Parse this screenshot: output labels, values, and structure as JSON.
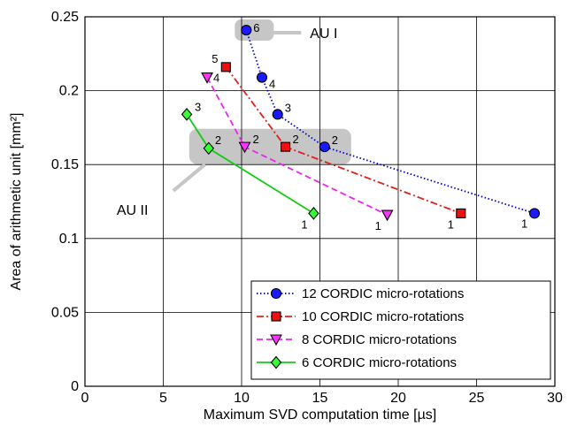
{
  "chart_data": {
    "type": "line",
    "xlabel": "Maximum SVD computation time [µs]",
    "ylabel": "Area of arithmetic unit [mm²]",
    "xlim": [
      0,
      30
    ],
    "ylim": [
      0,
      0.25
    ],
    "xticks": [
      "0",
      "5",
      "10",
      "15",
      "20",
      "25",
      "30"
    ],
    "yticks": [
      "0",
      "0.05",
      "0.1",
      "0.15",
      "0.2",
      "0.25"
    ],
    "grid": true,
    "legend_position": "bottom-right",
    "series": [
      {
        "name": "12 CORDIC micro-rotations",
        "color": "#0000cc",
        "marker_fill": "#1a1aff",
        "marker": "circle",
        "line_style": "dotted",
        "points": [
          {
            "x": 10.3,
            "y": 0.241,
            "label": "6"
          },
          {
            "x": 11.3,
            "y": 0.209,
            "label": "4"
          },
          {
            "x": 12.3,
            "y": 0.184,
            "label": "3"
          },
          {
            "x": 15.3,
            "y": 0.162,
            "label": "2"
          },
          {
            "x": 28.7,
            "y": 0.117,
            "label": "1"
          }
        ]
      },
      {
        "name": "10 CORDIC micro-rotations",
        "color": "#e0201a",
        "marker_fill": "#ee1111",
        "marker": "square",
        "line_style": "dashdot",
        "points": [
          {
            "x": 9.0,
            "y": 0.216,
            "label": "5"
          },
          {
            "x": 12.8,
            "y": 0.162,
            "label": "2"
          },
          {
            "x": 24.0,
            "y": 0.117,
            "label": "1"
          }
        ]
      },
      {
        "name": "8 CORDIC micro-rotations",
        "color": "#ee22ee",
        "marker_fill": "#ff33ff",
        "marker": "triangle-down",
        "line_style": "dashed",
        "points": [
          {
            "x": 7.8,
            "y": 0.209,
            "label": "4"
          },
          {
            "x": 10.2,
            "y": 0.162,
            "label": "2"
          },
          {
            "x": 19.3,
            "y": 0.116,
            "label": "1"
          }
        ]
      },
      {
        "name": "6 CORDIC micro-rotations",
        "color": "#11cc11",
        "marker_fill": "#33ff33",
        "marker": "diamond",
        "line_style": "solid",
        "points": [
          {
            "x": 6.5,
            "y": 0.184,
            "label": "3"
          },
          {
            "x": 7.9,
            "y": 0.161,
            "label": "2"
          },
          {
            "x": 14.6,
            "y": 0.117,
            "label": "1"
          }
        ]
      }
    ],
    "annotations": [
      {
        "text": "AU I",
        "target": {
          "x": 10.3,
          "y": 0.241
        }
      },
      {
        "text": "AU II",
        "target": {
          "x": 7.9,
          "y": 0.161
        }
      }
    ]
  }
}
